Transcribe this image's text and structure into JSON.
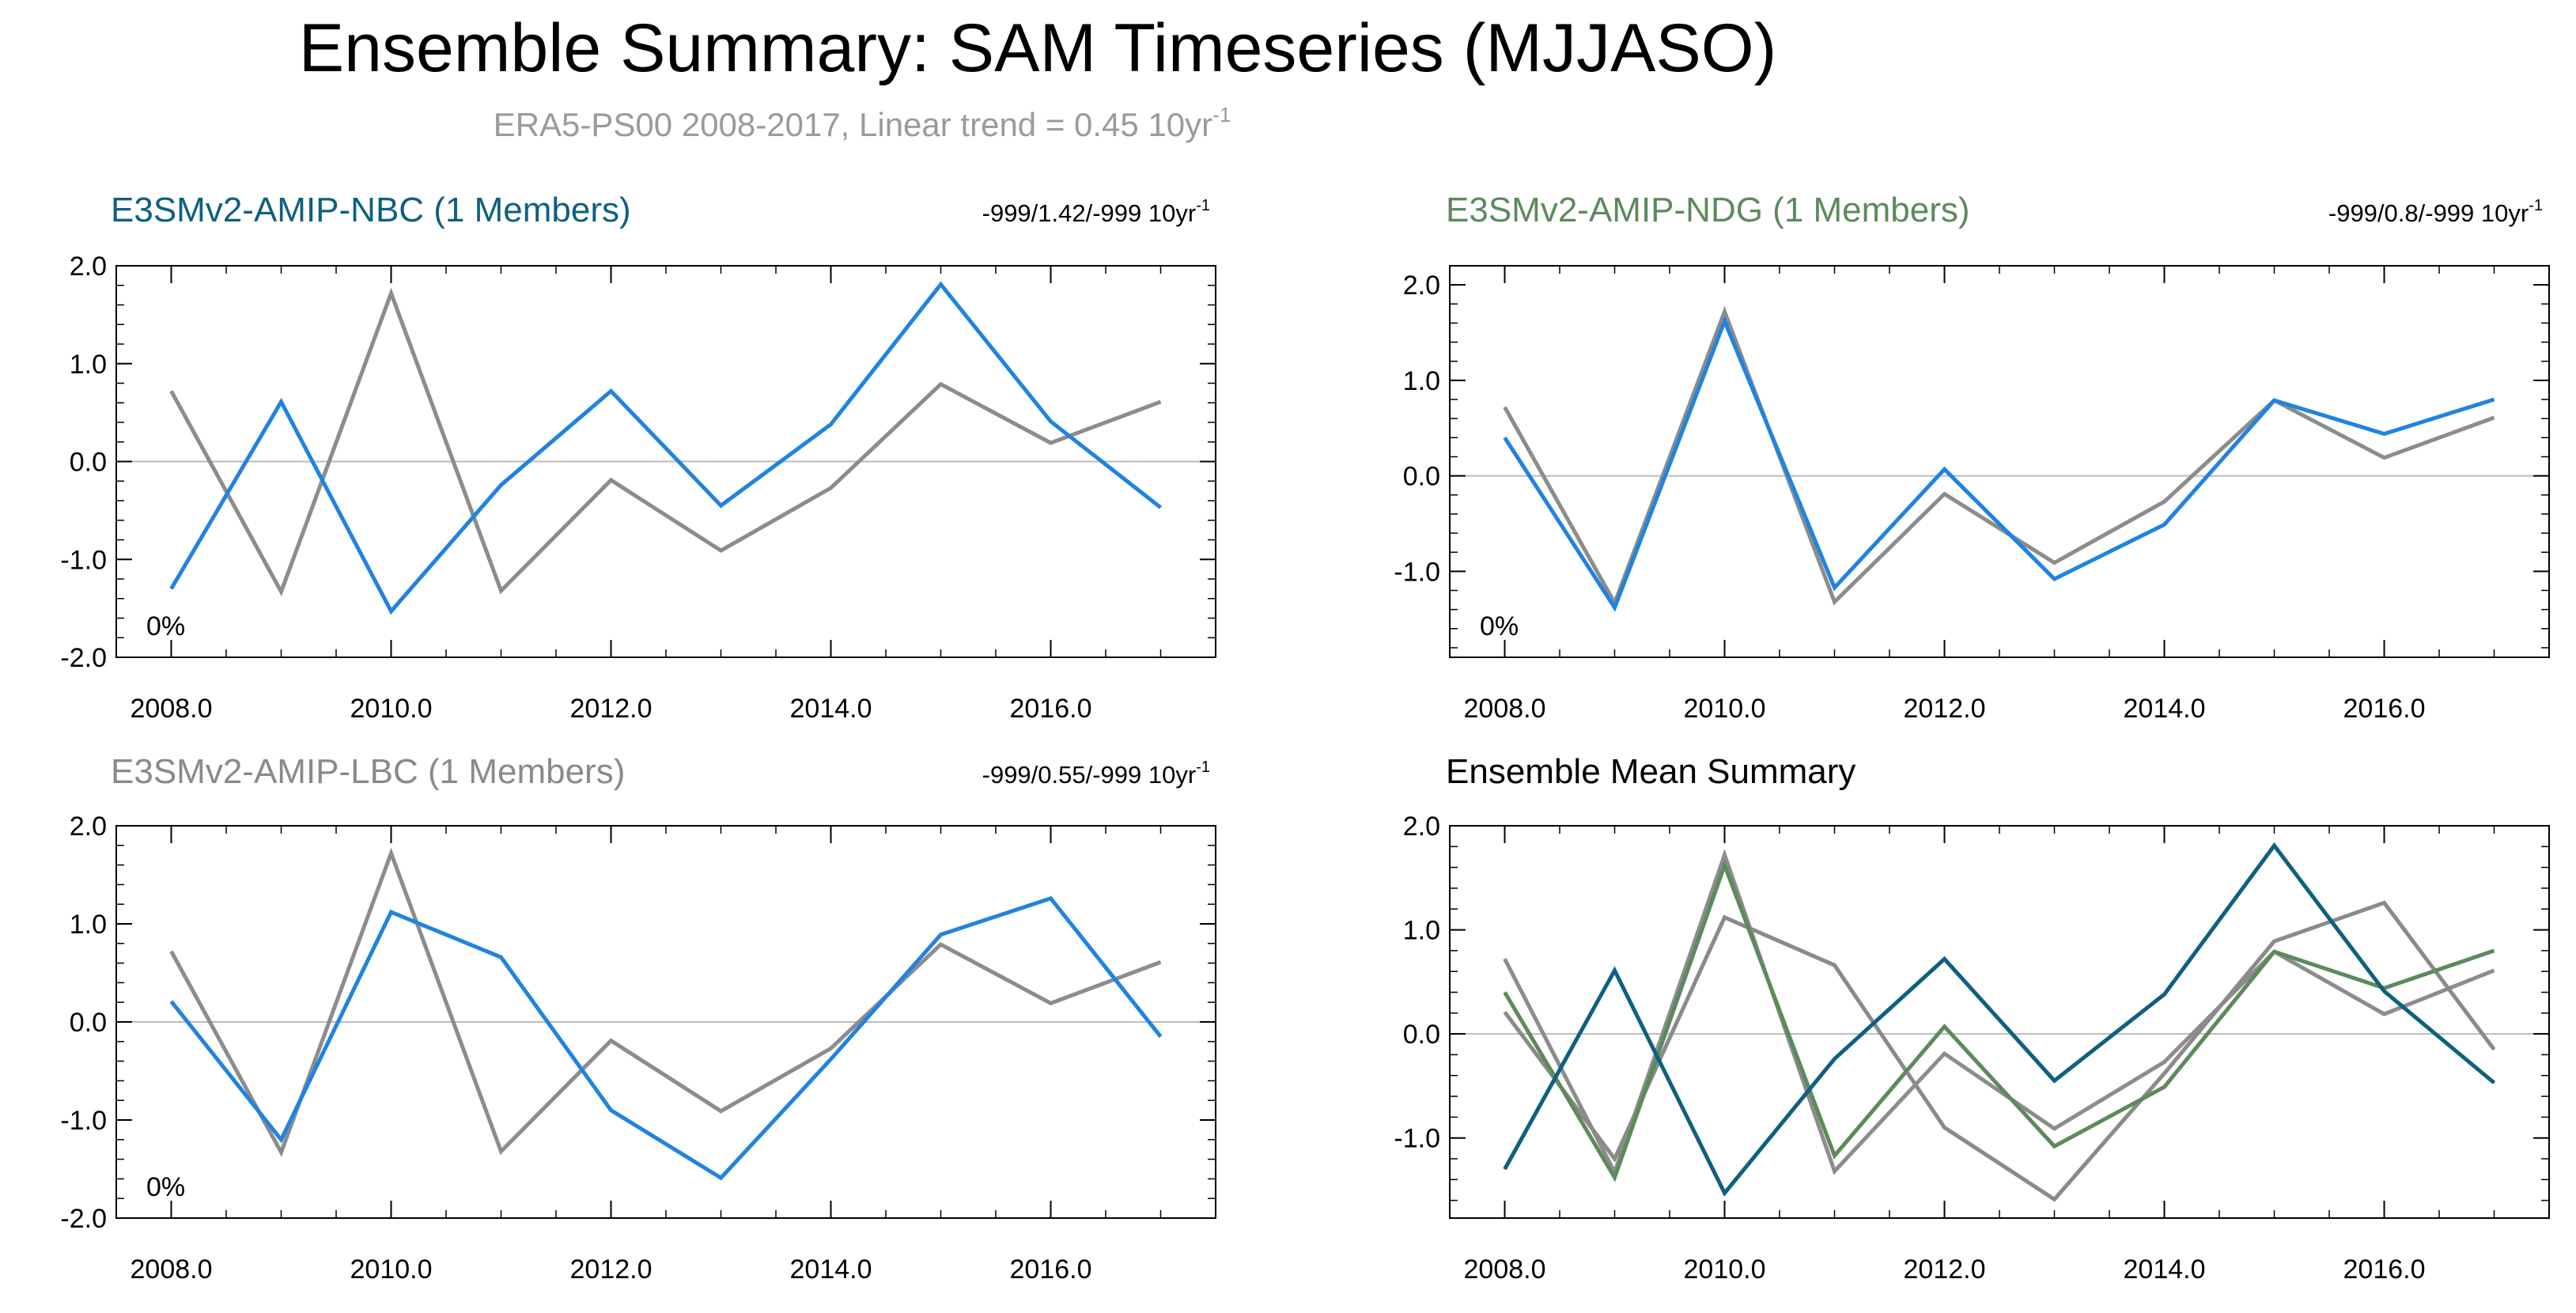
{
  "title": "Ensemble Summary: SAM Timeseries (MJJASO)",
  "subtitle": {
    "text": "ERA5-PS00 2008-2017, Linear trend = 0.45 10yr",
    "sup": "-1"
  },
  "colors": {
    "reference": "#8c8c8c",
    "model": "#2083e0",
    "nbc": "#0e6080",
    "ndg": "#5c8a5c",
    "lbc": "#8a8a8a",
    "subtitle": "#9a9a9a",
    "zero_line": "#bbbbbb"
  },
  "chart_data": [
    {
      "type": "line",
      "title": "E3SMv2-AMIP-NBC (1 Members)",
      "title_color": "#0e6080",
      "trend_label": "-999/1.42/-999 10yr",
      "trend_sup": "-1",
      "annotation": "0%",
      "x": [
        2008,
        2009,
        2010,
        2011,
        2012,
        2013,
        2014,
        2015,
        2016,
        2017
      ],
      "xlim": [
        2007.5,
        2017.5
      ],
      "ylim": [
        -2.0,
        2.0
      ],
      "xticks": [
        2008,
        2010,
        2012,
        2014,
        2016
      ],
      "xtick_labels": [
        "2008.0",
        "2010.0",
        "2012.0",
        "2014.0",
        "2016.0"
      ],
      "yticks": [
        -2.0,
        -1.0,
        0.0,
        1.0,
        2.0
      ],
      "ytick_labels": [
        "-2.0",
        "-1.0",
        "0.0",
        "1.0",
        "2.0"
      ],
      "series": [
        {
          "name": "ERA5-PS00",
          "color": "#8c8c8c",
          "values": [
            0.72,
            -1.33,
            1.72,
            -1.32,
            -0.19,
            -0.91,
            -0.27,
            0.79,
            0.19,
            0.61
          ]
        },
        {
          "name": "E3SMv2-AMIP-NBC",
          "color": "#2083e0",
          "values": [
            -1.3,
            0.61,
            -1.53,
            -0.24,
            0.72,
            -0.45,
            0.38,
            1.81,
            0.41,
            -0.47
          ]
        }
      ]
    },
    {
      "type": "line",
      "title": "E3SMv2-AMIP-NDG (1 Members)",
      "title_color": "#5c8a5c",
      "trend_label": "-999/0.8/-999 10yr",
      "trend_sup": "-1",
      "annotation": "0%",
      "x": [
        2008,
        2009,
        2010,
        2011,
        2012,
        2013,
        2014,
        2015,
        2016,
        2017
      ],
      "xlim": [
        2007.5,
        2017.5
      ],
      "ylim": [
        -1.9,
        2.2
      ],
      "xticks": [
        2008,
        2010,
        2012,
        2014,
        2016
      ],
      "xtick_labels": [
        "2008.0",
        "2010.0",
        "2012.0",
        "2014.0",
        "2016.0"
      ],
      "yticks": [
        -1.0,
        0.0,
        1.0,
        2.0
      ],
      "ytick_labels": [
        "-1.0",
        "0.0",
        "1.0",
        "2.0"
      ],
      "series": [
        {
          "name": "ERA5-PS00",
          "color": "#8c8c8c",
          "values": [
            0.72,
            -1.33,
            1.72,
            -1.32,
            -0.19,
            -0.91,
            -0.27,
            0.79,
            0.19,
            0.61
          ]
        },
        {
          "name": "E3SMv2-AMIP-NDG",
          "color": "#2083e0",
          "values": [
            0.4,
            -1.38,
            1.62,
            -1.17,
            0.07,
            -1.08,
            -0.51,
            0.79,
            0.44,
            0.8
          ]
        }
      ]
    },
    {
      "type": "line",
      "title": "E3SMv2-AMIP-LBC (1 Members)",
      "title_color": "#8a8a8a",
      "trend_label": "-999/0.55/-999 10yr",
      "trend_sup": "-1",
      "annotation": "0%",
      "x": [
        2008,
        2009,
        2010,
        2011,
        2012,
        2013,
        2014,
        2015,
        2016,
        2017
      ],
      "xlim": [
        2007.5,
        2017.5
      ],
      "ylim": [
        -2.0,
        2.0
      ],
      "xticks": [
        2008,
        2010,
        2012,
        2014,
        2016
      ],
      "xtick_labels": [
        "2008.0",
        "2010.0",
        "2012.0",
        "2014.0",
        "2016.0"
      ],
      "yticks": [
        -2.0,
        -1.0,
        0.0,
        1.0,
        2.0
      ],
      "ytick_labels": [
        "-2.0",
        "-1.0",
        "0.0",
        "1.0",
        "2.0"
      ],
      "series": [
        {
          "name": "ERA5-PS00",
          "color": "#8c8c8c",
          "values": [
            0.72,
            -1.33,
            1.72,
            -1.32,
            -0.19,
            -0.91,
            -0.27,
            0.79,
            0.19,
            0.61
          ]
        },
        {
          "name": "E3SMv2-AMIP-LBC",
          "color": "#2083e0",
          "values": [
            0.21,
            -1.2,
            1.12,
            0.66,
            -0.9,
            -1.59,
            -0.38,
            0.89,
            1.26,
            -0.15
          ]
        }
      ]
    },
    {
      "type": "line",
      "title": "Ensemble Mean Summary",
      "title_color": "#000000",
      "trend_label": "",
      "trend_sup": "",
      "annotation": "",
      "x": [
        2008,
        2009,
        2010,
        2011,
        2012,
        2013,
        2014,
        2015,
        2016,
        2017
      ],
      "xlim": [
        2007.5,
        2017.5
      ],
      "ylim": [
        -1.77,
        2.0
      ],
      "xticks": [
        2008,
        2010,
        2012,
        2014,
        2016
      ],
      "xtick_labels": [
        "2008.0",
        "2010.0",
        "2012.0",
        "2014.0",
        "2016.0"
      ],
      "yticks": [
        -1.0,
        0.0,
        1.0,
        2.0
      ],
      "ytick_labels": [
        "-1.0",
        "0.0",
        "1.0",
        "2.0"
      ],
      "series": [
        {
          "name": "ERA5-PS00",
          "color": "#8c8c8c",
          "values": [
            0.72,
            -1.33,
            1.72,
            -1.32,
            -0.19,
            -0.91,
            -0.27,
            0.79,
            0.19,
            0.61
          ]
        },
        {
          "name": "E3SMv2-AMIP-LBC",
          "color": "#8a8a8a",
          "values": [
            0.21,
            -1.2,
            1.12,
            0.66,
            -0.9,
            -1.59,
            -0.38,
            0.89,
            1.26,
            -0.15
          ]
        },
        {
          "name": "E3SMv2-AMIP-NDG",
          "color": "#5c8a5c",
          "values": [
            0.4,
            -1.38,
            1.62,
            -1.17,
            0.07,
            -1.08,
            -0.51,
            0.79,
            0.44,
            0.8
          ]
        },
        {
          "name": "E3SMv2-AMIP-NBC",
          "color": "#0e6080",
          "values": [
            -1.3,
            0.61,
            -1.53,
            -0.24,
            0.72,
            -0.45,
            0.38,
            1.81,
            0.41,
            -0.47
          ]
        }
      ]
    }
  ]
}
